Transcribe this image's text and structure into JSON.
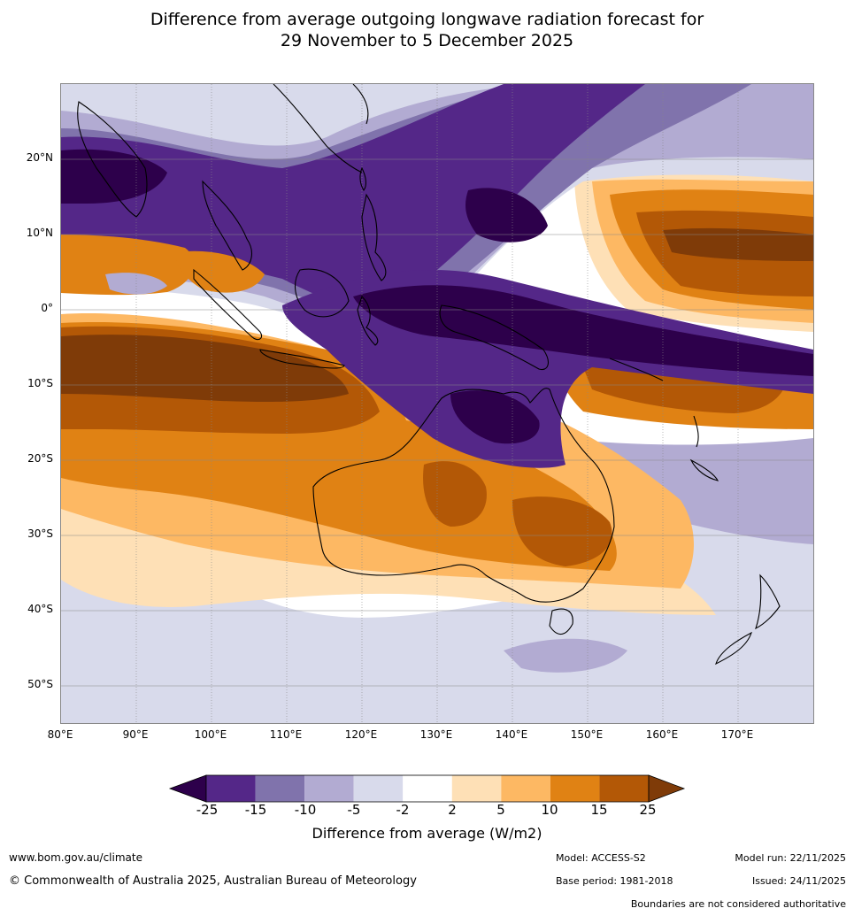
{
  "title": {
    "line1": "Difference from average outgoing longwave radiation forecast for",
    "line2": "29 November to 5 December 2025"
  },
  "map": {
    "lat_labels": [
      "20°N",
      "10°N",
      "0°",
      "10°S",
      "20°S",
      "30°S",
      "40°S",
      "50°S"
    ],
    "lon_labels": [
      "80°E",
      "90°E",
      "100°E",
      "110°E",
      "120°E",
      "130°E",
      "140°E",
      "150°E",
      "160°E",
      "170°E"
    ],
    "lat_range": [
      -55,
      30
    ],
    "lon_range": [
      80,
      180
    ]
  },
  "colorbar": {
    "ticks": [
      "-25",
      "-15",
      "-10",
      "-5",
      "-2",
      "2",
      "5",
      "10",
      "15",
      "25"
    ],
    "colors": [
      "#2d004b",
      "#542788",
      "#8073ac",
      "#b2abd2",
      "#d8daeb",
      "#ffffff",
      "#fee0b6",
      "#fdb863",
      "#e08214",
      "#b35806",
      "#7f3b08"
    ],
    "label": "Difference from average (W/m2)"
  },
  "footer": {
    "website": "www.bom.gov.au/climate",
    "copyright": "© Commonwealth of Australia 2025, Australian Bureau of Meteorology",
    "model": "Model: ACCESS-S2",
    "base_period": "Base period: 1981-2018",
    "model_run": "Model run: 22/11/2025",
    "issued": "Issued: 24/11/2025",
    "disclaimer": "Boundaries are not considered authoritative"
  }
}
